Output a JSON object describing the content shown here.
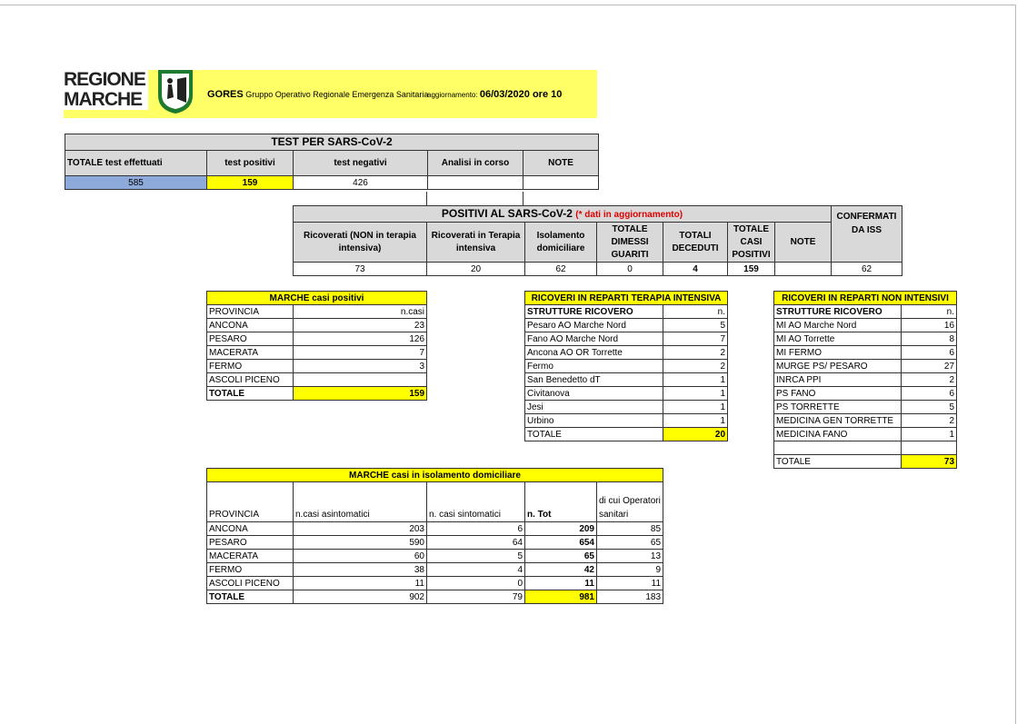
{
  "header": {
    "logo_text": [
      "REGIONE",
      "MARCHE"
    ],
    "org_short": "GORES",
    "org_full": "Gruppo Operativo Regionale Emergenza Sanitaria",
    "update_label": "aggiornamento:",
    "update_value": "06/03/2020 ore 10"
  },
  "tests": {
    "title": "TEST PER SARS-CoV-2",
    "columns": [
      "TOTALE test effettuati",
      "test positivi",
      "test negativi",
      "Analisi in corso",
      "NOTE"
    ],
    "values": [
      "585",
      "159",
      "426",
      "",
      ""
    ]
  },
  "positivi": {
    "title": "POSITIVI AL SARS-CoV-2",
    "note": "(* dati in aggiornamento)",
    "columns": [
      "Ricoverati (NON in terapia intensiva)",
      "Ricoverati in Terapia intensiva",
      "Isolamento domiciliare",
      "TOTALE DIMESSI GUARITI",
      "TOTALI DECEDUTI",
      "TOTALE CASI POSITIVI",
      "NOTE",
      "CONFERMATI DA ISS"
    ],
    "values": [
      "73",
      "20",
      "62",
      "0",
      "4",
      "159",
      "",
      "62"
    ]
  },
  "casi_positivi": {
    "title": "MARCHE casi positivi",
    "col1": "PROVINCIA",
    "col2": "n.casi",
    "rows": [
      [
        "ANCONA",
        "23"
      ],
      [
        "PESARO",
        "126"
      ],
      [
        "MACERATA",
        "7"
      ],
      [
        "FERMO",
        "3"
      ],
      [
        "ASCOLI PICENO",
        ""
      ]
    ],
    "total_label": "TOTALE",
    "total": "159"
  },
  "terapia_intensiva": {
    "title": "RICOVERI IN REPARTI TERAPIA INTENSIVA",
    "col1": "STRUTTURE RICOVERO",
    "col2": "n.",
    "rows": [
      [
        "Pesaro AO Marche Nord",
        "5"
      ],
      [
        "Fano AO Marche Nord",
        "7"
      ],
      [
        "Ancona AO OR Torrette",
        "2"
      ],
      [
        "Fermo",
        "2"
      ],
      [
        "San Benedetto dT",
        "1"
      ],
      [
        "Civitanova",
        "1"
      ],
      [
        "Jesi",
        "1"
      ],
      [
        "Urbino",
        "1"
      ]
    ],
    "total_label": "TOTALE",
    "total": "20"
  },
  "non_intensivi": {
    "title": "RICOVERI IN REPARTI NON INTENSIVI",
    "col1": "STRUTTURE RICOVERO",
    "col2": "n.",
    "rows": [
      [
        "MI AO Marche Nord",
        "16"
      ],
      [
        "MI AO Torrette",
        "8"
      ],
      [
        "MI FERMO",
        "6"
      ],
      [
        "MURGE PS/ PESARO",
        "27"
      ],
      [
        "INRCA PPI",
        "2"
      ],
      [
        "PS FANO",
        "6"
      ],
      [
        "PS TORRETTE",
        "5"
      ],
      [
        "MEDICINA GEN TORRETTE",
        "2"
      ],
      [
        "MEDICINA FANO",
        "1"
      ],
      [
        "",
        ""
      ]
    ],
    "total_label": "TOTALE",
    "total": "73"
  },
  "isolamento": {
    "title": "MARCHE casi in isolamento domiciliare",
    "columns": [
      "PROVINCIA",
      "n.casi asintomatici",
      "n. casi sintomatici",
      "n. Tot",
      "di cui Operatori sanitari"
    ],
    "rows": [
      [
        "ANCONA",
        "203",
        "6",
        "209",
        "85"
      ],
      [
        "PESARO",
        "590",
        "64",
        "654",
        "65"
      ],
      [
        "MACERATA",
        "60",
        "5",
        "65",
        "13"
      ],
      [
        "FERMO",
        "38",
        "4",
        "42",
        "9"
      ],
      [
        "ASCOLI PICENO",
        "11",
        "0",
        "11",
        "11"
      ]
    ],
    "total": [
      "TOTALE",
      "902",
      "79",
      "981",
      "183"
    ]
  }
}
